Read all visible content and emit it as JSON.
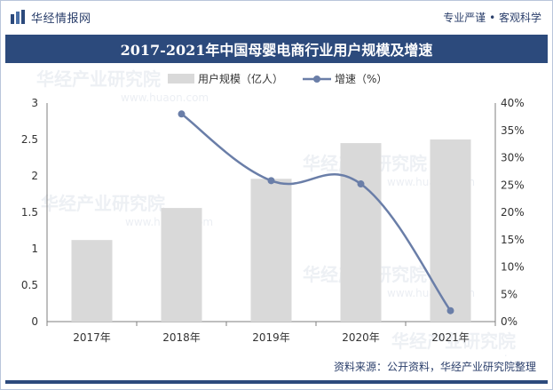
{
  "brand": {
    "name": "华经情报网",
    "tagline": "专业严谨 • 客观科学"
  },
  "chart_data": {
    "type": "bar",
    "title": "2017-2021年中国母婴电商行业用户规模及增速",
    "categories": [
      "2017年",
      "2018年",
      "2019年",
      "2020年",
      "2021年"
    ],
    "series": [
      {
        "name": "用户规模（亿人）",
        "type": "bar",
        "axis": "left",
        "values": [
          1.12,
          1.56,
          1.96,
          2.45,
          2.5
        ],
        "color": "#d9d9d9"
      },
      {
        "name": "增速（%）",
        "type": "line",
        "axis": "right",
        "values": [
          null,
          38.0,
          25.8,
          25.2,
          2.0
        ],
        "color": "#6a7ea8"
      }
    ],
    "yleft": {
      "min": 0,
      "max": 3,
      "ticks": [
        "0",
        "0.5",
        "1",
        "1.5",
        "2",
        "2.5",
        "3"
      ]
    },
    "yright": {
      "min": 0,
      "max": 40,
      "ticks": [
        "0%",
        "5%",
        "10%",
        "15%",
        "20%",
        "25%",
        "30%",
        "35%",
        "40%"
      ]
    },
    "legend_position": "top-center"
  },
  "watermark": {
    "text": "华经产业研究院",
    "url": "www.huaon.com"
  },
  "source": "资料来源：公开资料，华经产业研究院整理"
}
